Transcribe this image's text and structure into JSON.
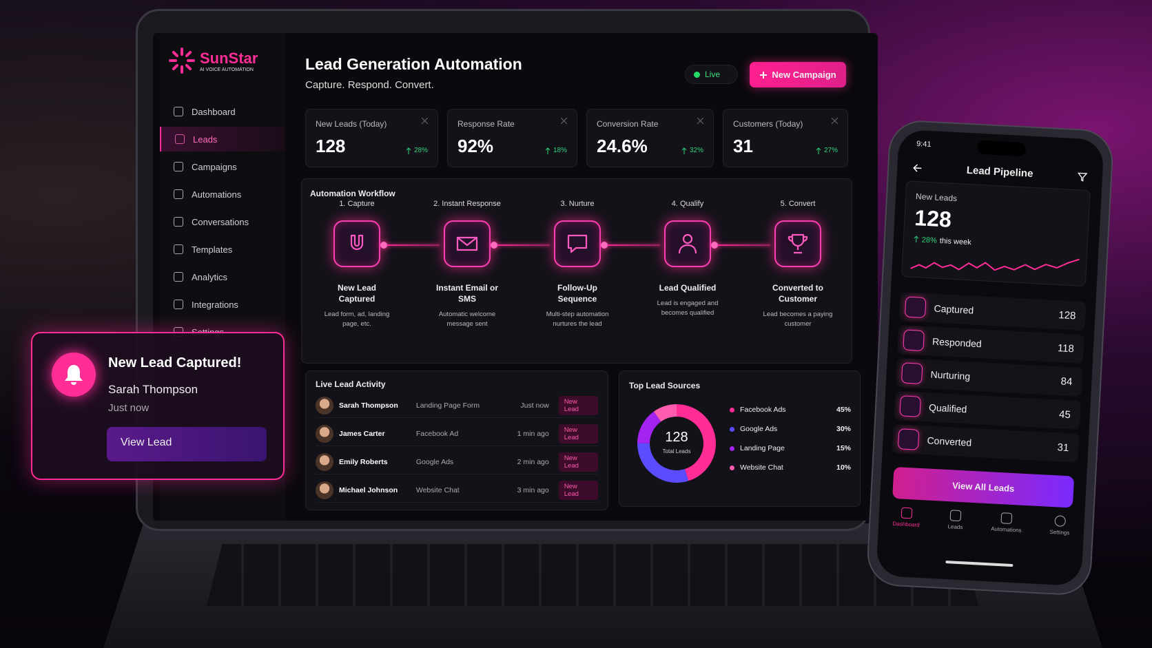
{
  "brand": {
    "name": "SunStar",
    "tagline": "AI VOICE AUTOMATION"
  },
  "sidebar": {
    "items": [
      "Dashboard",
      "Leads",
      "Campaigns",
      "Automations",
      "Conversations",
      "Templates",
      "Analytics",
      "Integrations",
      "Settings"
    ]
  },
  "header": {
    "title": "Lead Generation Automation",
    "subtitle": "Capture. Respond. Convert.",
    "status": "Live",
    "button": "New Campaign"
  },
  "stats": [
    {
      "label": "New Leads (Today)",
      "value": "128",
      "change": "28%"
    },
    {
      "label": "Response Rate",
      "value": "92%",
      "change": "18%"
    },
    {
      "label": "Conversion Rate",
      "value": "24.6%",
      "change": "32%"
    },
    {
      "label": "Customers (Today)",
      "value": "31",
      "change": "27%"
    }
  ],
  "workflow": {
    "title": "Automation Workflow",
    "steps": [
      {
        "step": "1. Capture",
        "title": "New Lead Captured",
        "desc": "Lead form, ad, landing page, etc."
      },
      {
        "step": "2. Instant Response",
        "title": "Instant Email or SMS",
        "desc": "Automatic welcome message sent"
      },
      {
        "step": "3. Nurture",
        "title": "Follow-Up Sequence",
        "desc": "Multi-step automation nurtures the lead"
      },
      {
        "step": "4. Qualify",
        "title": "Lead Qualified",
        "desc": "Lead is engaged and becomes qualified"
      },
      {
        "step": "5. Convert",
        "title": "Converted to Customer",
        "desc": "Lead becomes a paying customer"
      }
    ]
  },
  "activity": {
    "title": "Live Lead Activity",
    "rows": [
      {
        "name": "Sarah Thompson",
        "source": "Landing Page Form",
        "time": "Just now",
        "status": "New Lead"
      },
      {
        "name": "James Carter",
        "source": "Facebook Ad",
        "time": "1 min ago",
        "status": "New Lead"
      },
      {
        "name": "Emily Roberts",
        "source": "Google Ads",
        "time": "2 min ago",
        "status": "New Lead"
      },
      {
        "name": "Michael Johnson",
        "source": "Website Chat",
        "time": "3 min ago",
        "status": "New Lead"
      }
    ]
  },
  "sources": {
    "title": "Top Lead Sources",
    "total": "128",
    "total_label": "Total Leads",
    "items": [
      {
        "name": "Facebook Ads",
        "value": 45,
        "label": "45%",
        "color": "#ff2d95"
      },
      {
        "name": "Google Ads",
        "value": 30,
        "label": "30%",
        "color": "#5b4dff"
      },
      {
        "name": "Landing Page",
        "value": 15,
        "label": "15%",
        "color": "#a324f0"
      },
      {
        "name": "Website Chat",
        "value": 10,
        "label": "10%",
        "color": "#ff5cb0"
      }
    ]
  },
  "notification": {
    "title": "New Lead Captured!",
    "name": "Sarah Thompson",
    "time": "Just now",
    "button": "View Lead"
  },
  "phone": {
    "time": "9:41",
    "title": "Lead Pipeline",
    "card": {
      "label": "New Leads",
      "value": "128",
      "change": "28%",
      "period": "this week"
    },
    "pipeline": [
      {
        "name": "Captured",
        "count": "128"
      },
      {
        "name": "Responded",
        "count": "118"
      },
      {
        "name": "Nurturing",
        "count": "84"
      },
      {
        "name": "Qualified",
        "count": "45"
      },
      {
        "name": "Converted",
        "count": "31"
      }
    ],
    "button": "View All Leads",
    "tabs": [
      "Dashboard",
      "Leads",
      "Automations",
      "Settings"
    ]
  }
}
